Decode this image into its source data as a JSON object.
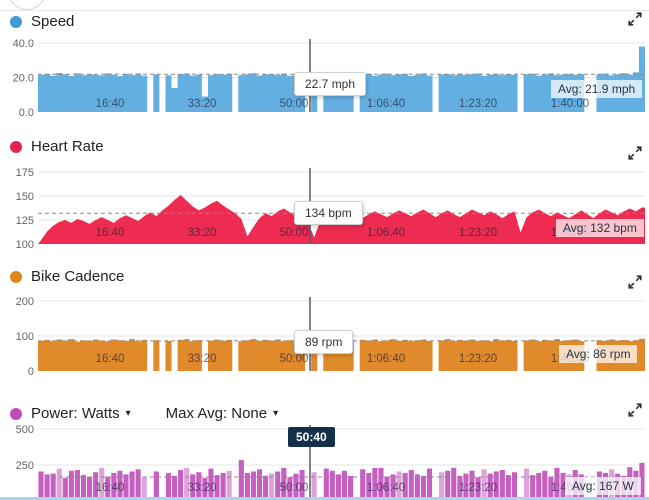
{
  "chart_data": [
    {
      "type": "area",
      "title": "Speed",
      "unit": "mph",
      "color": "#64AFE2",
      "dot_color": "#3D9BD7",
      "ylim": [
        0,
        40
      ],
      "yticks": [
        [
          "0.0",
          0
        ],
        [
          "20.0",
          20
        ],
        [
          "40.0",
          40
        ]
      ],
      "xticks": [
        "16:40",
        "33:20",
        "50:00",
        "1:06:40",
        "1:23:20",
        "1:40:00"
      ],
      "avg": 21.9,
      "avg_label": "Avg: 21.9 mph",
      "cursor_value": "22.7 mph",
      "cursor_time": "50:40",
      "values": [
        21.5,
        22.2,
        21.0,
        22.6,
        21.8,
        20.9,
        22.4,
        21.3,
        22.0,
        21.6,
        21.2,
        22.4,
        21.7,
        20.8,
        22.1,
        21.4,
        22.3,
        21.0,
        0,
        21.8,
        0,
        21.2,
        14.0,
        21.9,
        22.3,
        21.1,
        21.7,
        9.0,
        21.4,
        22.0,
        21.6,
        22.2,
        0,
        21.3,
        21.9,
        22.5,
        21.1,
        21.8,
        22.0,
        21.4,
        22.3,
        21.0,
        21.7,
        22.1,
        0,
        21.6,
        0,
        21.9,
        22.4,
        21.2,
        21.8,
        22.0,
        0,
        21.5,
        22.2,
        21.0,
        21.7,
        22.3,
        21.4,
        21.9,
        22.1,
        20.9,
        21.6,
        22.4,
        21.1,
        0,
        21.8,
        22.0,
        21.3,
        22.2,
        21.5,
        21.9,
        22.3,
        21.0,
        21.7,
        22.1,
        21.4,
        22.0,
        21.6,
        0,
        21.9,
        22.2,
        21.1,
        21.8,
        22.4,
        21.3,
        21.7,
        22.0,
        21.5,
        22.1,
        0,
        0,
        21.8,
        22.3,
        21.2,
        21.9,
        22.5,
        21.6,
        23.0,
        38.0
      ]
    },
    {
      "type": "area",
      "title": "Heart Rate",
      "unit": "bpm",
      "color": "#EE2B51",
      "dot_color": "#E5234F",
      "ylim": [
        100,
        175
      ],
      "yticks": [
        [
          "100",
          100
        ],
        [
          "125",
          125
        ],
        [
          "150",
          150
        ],
        [
          "175",
          175
        ]
      ],
      "xticks": [
        "16:40",
        "33:20",
        "50:00",
        "1:06:40",
        "1:23:20",
        "1:40:00"
      ],
      "avg": 132,
      "avg_label": "Avg: 132 bpm",
      "cursor_value": "134 bpm",
      "cursor_time": "50:40",
      "values": [
        104,
        113,
        119,
        123,
        125,
        122,
        126,
        124,
        121,
        125,
        128,
        125,
        122,
        127,
        130,
        127,
        124,
        129,
        133,
        129,
        135,
        140,
        146,
        151,
        145,
        139,
        135,
        138,
        142,
        145,
        140,
        136,
        132,
        126,
        108,
        118,
        127,
        132,
        129,
        134,
        137,
        133,
        129,
        126,
        122,
        107,
        124,
        131,
        135,
        132,
        129,
        133,
        130,
        127,
        131,
        134,
        131,
        128,
        132,
        135,
        132,
        129,
        133,
        136,
        132,
        128,
        132,
        135,
        131,
        128,
        132,
        136,
        133,
        130,
        134,
        131,
        127,
        131,
        134,
        112,
        128,
        133,
        136,
        132,
        129,
        133,
        130,
        127,
        131,
        135,
        131,
        127,
        132,
        136,
        133,
        130,
        134,
        137,
        134,
        138
      ]
    },
    {
      "type": "area",
      "title": "Bike Cadence",
      "unit": "rpm",
      "color": "#E08A2B",
      "dot_color": "#DD861F",
      "ylim": [
        0,
        200
      ],
      "yticks": [
        [
          "0",
          0
        ],
        [
          "100",
          100
        ],
        [
          "200",
          200
        ]
      ],
      "xticks": [
        "16:40",
        "33:20",
        "50:00",
        "1:06:40",
        "1:23:20",
        "1:40:00"
      ],
      "avg": 86,
      "avg_label": "Avg: 86 rpm",
      "cursor_value": "89 rpm",
      "cursor_time": "50:40",
      "values": [
        86,
        89,
        85,
        90,
        87,
        91,
        84,
        88,
        86,
        90,
        87,
        85,
        90,
        88,
        86,
        91,
        85,
        89,
        0,
        88,
        0,
        86,
        0,
        89,
        91,
        85,
        88,
        0,
        87,
        90,
        86,
        89,
        0,
        85,
        88,
        91,
        86,
        89,
        87,
        90,
        85,
        88,
        86,
        90,
        0,
        87,
        0,
        89,
        86,
        91,
        88,
        85,
        0,
        89,
        87,
        90,
        85,
        88,
        91,
        86,
        89,
        85,
        88,
        90,
        86,
        0,
        88,
        91,
        85,
        89,
        87,
        90,
        86,
        88,
        85,
        91,
        87,
        89,
        86,
        0,
        88,
        90,
        85,
        89,
        87,
        91,
        86,
        88,
        90,
        85,
        0,
        0,
        88,
        86,
        90,
        87,
        89,
        85,
        88,
        92
      ]
    },
    {
      "type": "area",
      "title": "Power",
      "title_label": "Power: Watts",
      "max_avg_label": "Max Avg: None",
      "unit": "W",
      "color": "#C75FC3",
      "light_color": "#DFA3DC",
      "dot_color": "#BC4CBA",
      "ylim": [
        0,
        500
      ],
      "yticks": [
        [
          "250",
          250
        ],
        [
          "500",
          500
        ]
      ],
      "xticks": [
        "16:40",
        "33:20",
        "50:00",
        "1:06:40",
        "1:23:20",
        "1:40:00"
      ],
      "avg": 167,
      "avg_label": "Avg: 167 W",
      "cursor_time": "50:40",
      "values": [
        205,
        185,
        190,
        225,
        160,
        210,
        215,
        180,
        170,
        200,
        230,
        170,
        195,
        210,
        185,
        205,
        220,
        165,
        0,
        205,
        0,
        195,
        175,
        215,
        230,
        185,
        200,
        160,
        225,
        180,
        195,
        210,
        0,
        285,
        195,
        205,
        220,
        175,
        190,
        205,
        230,
        165,
        190,
        215,
        0,
        200,
        0,
        225,
        210,
        185,
        210,
        175,
        0,
        220,
        195,
        230,
        230,
        170,
        185,
        205,
        195,
        215,
        185,
        175,
        225,
        0,
        200,
        210,
        230,
        175,
        190,
        210,
        165,
        220,
        190,
        205,
        215,
        180,
        200,
        0,
        225,
        180,
        195,
        210,
        170,
        230,
        195,
        185,
        215,
        185,
        0,
        0,
        205,
        195,
        220,
        190,
        175,
        235,
        210,
        265
      ]
    }
  ]
}
